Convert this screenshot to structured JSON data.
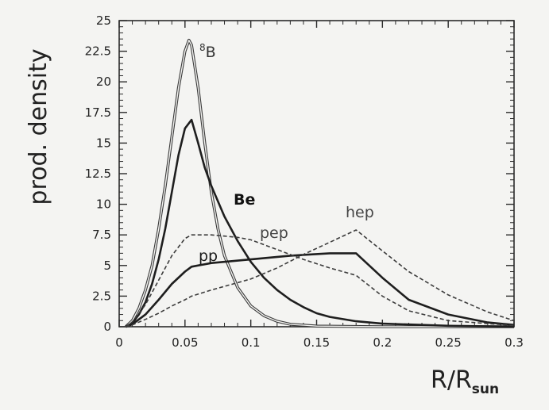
{
  "chart_data": {
    "type": "line",
    "xlabel": "R/R",
    "xlabel_sub": "sun",
    "ylabel": "prod. density",
    "xlim": [
      0,
      0.3
    ],
    "ylim": [
      0,
      25
    ],
    "grid": false,
    "x_ticks": [
      0,
      0.05,
      0.1,
      0.15,
      0.2,
      0.25,
      0.3
    ],
    "x_tick_labels": [
      "0",
      "0.05",
      "0.1",
      "0.15",
      "0.2",
      "0.25",
      "0.3"
    ],
    "y_ticks": [
      0,
      2.5,
      5,
      7.5,
      10,
      12.5,
      15,
      17.5,
      20,
      22.5,
      25
    ],
    "y_tick_labels": [
      "0",
      "2.5",
      "5",
      "7.5",
      "10",
      "12.5",
      "15",
      "17.5",
      "20",
      "22.5",
      "25"
    ],
    "series": [
      {
        "name": "8B",
        "label_sup": "8",
        "label_main": "B",
        "style": "double",
        "x": [
          0.005,
          0.01,
          0.015,
          0.02,
          0.025,
          0.03,
          0.035,
          0.04,
          0.045,
          0.05,
          0.053,
          0.055,
          0.06,
          0.065,
          0.07,
          0.075,
          0.08,
          0.09,
          0.1,
          0.11,
          0.12,
          0.13,
          0.15,
          0.2,
          0.3
        ],
        "y": [
          0,
          0.5,
          1.5,
          3.0,
          5.0,
          8.0,
          11.5,
          15.5,
          19.5,
          22.5,
          23.4,
          23.0,
          19.5,
          15.0,
          11.0,
          8.0,
          5.8,
          3.2,
          1.7,
          0.9,
          0.45,
          0.2,
          0.05,
          0,
          0
        ]
      },
      {
        "name": "Be",
        "style": "thick",
        "x": [
          0.005,
          0.01,
          0.015,
          0.02,
          0.025,
          0.03,
          0.035,
          0.04,
          0.045,
          0.05,
          0.055,
          0.06,
          0.065,
          0.07,
          0.08,
          0.09,
          0.1,
          0.11,
          0.12,
          0.13,
          0.14,
          0.15,
          0.16,
          0.18,
          0.2,
          0.25,
          0.3
        ],
        "y": [
          0,
          0.3,
          1.0,
          2.0,
          3.5,
          5.5,
          8.0,
          11.0,
          14.0,
          16.2,
          16.9,
          15.0,
          13.0,
          11.5,
          9.0,
          7.0,
          5.3,
          4.0,
          3.0,
          2.2,
          1.6,
          1.1,
          0.8,
          0.45,
          0.25,
          0.08,
          0
        ]
      },
      {
        "name": "pp",
        "style": "thick",
        "x": [
          0.005,
          0.01,
          0.02,
          0.03,
          0.04,
          0.05,
          0.055,
          0.07,
          0.1,
          0.13,
          0.16,
          0.18,
          0.2,
          0.22,
          0.25,
          0.28,
          0.3
        ],
        "y": [
          0,
          0.2,
          1.0,
          2.2,
          3.5,
          4.5,
          4.9,
          5.2,
          5.5,
          5.8,
          6.0,
          6.0,
          4.0,
          2.2,
          1.0,
          0.35,
          0.15
        ]
      },
      {
        "name": "pep",
        "style": "dashed",
        "x": [
          0.005,
          0.01,
          0.02,
          0.03,
          0.04,
          0.05,
          0.055,
          0.06,
          0.07,
          0.08,
          0.09,
          0.1,
          0.12,
          0.14,
          0.16,
          0.18,
          0.2,
          0.22,
          0.25,
          0.3
        ],
        "y": [
          0,
          0.4,
          1.8,
          3.8,
          5.8,
          7.2,
          7.5,
          7.5,
          7.5,
          7.4,
          7.3,
          7.1,
          6.3,
          5.5,
          4.8,
          4.2,
          2.5,
          1.3,
          0.5,
          0.1
        ]
      },
      {
        "name": "hep",
        "style": "dashed",
        "x": [
          0.005,
          0.01,
          0.02,
          0.03,
          0.04,
          0.05,
          0.055,
          0.07,
          0.1,
          0.12,
          0.14,
          0.16,
          0.18,
          0.2,
          0.22,
          0.25,
          0.28,
          0.3
        ],
        "y": [
          0,
          0.15,
          0.6,
          1.1,
          1.7,
          2.2,
          2.5,
          3.0,
          3.9,
          4.8,
          5.9,
          6.9,
          7.9,
          6.2,
          4.5,
          2.6,
          1.2,
          0.5
        ]
      }
    ]
  }
}
